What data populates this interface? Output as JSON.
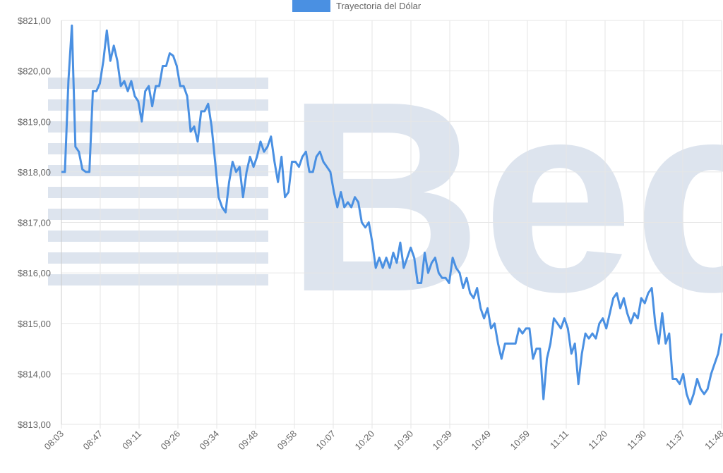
{
  "chart_data": {
    "type": "line",
    "legend_label": "Trayectoria del Dólar",
    "legend_position": "top-center",
    "grid": true,
    "colors": {
      "series": "#4A90E2",
      "grid": "#e6e6e6",
      "axis_text": "#666666",
      "watermark": "#dde4ee"
    },
    "watermark_text": "Bec",
    "y_ticks": [
      "$813,00",
      "$814,00",
      "$815,00",
      "$816,00",
      "$817,00",
      "$818,00",
      "$819,00",
      "$820,00",
      "$821,00"
    ],
    "ylim": [
      813,
      821
    ],
    "x_ticks": [
      "08:03",
      "08:47",
      "09:11",
      "09:26",
      "09:34",
      "09:48",
      "09:58",
      "10:07",
      "10:20",
      "10:30",
      "10:39",
      "10:49",
      "10:59",
      "11:11",
      "11:20",
      "11:30",
      "11:37",
      "11:48"
    ],
    "series": [
      {
        "name": "Trayectoria del Dólar",
        "values": [
          818.0,
          818.0,
          819.8,
          820.9,
          818.5,
          818.4,
          818.05,
          818.0,
          818.0,
          819.6,
          819.6,
          819.75,
          820.2,
          820.8,
          820.2,
          820.5,
          820.2,
          819.7,
          819.8,
          819.6,
          819.8,
          819.5,
          819.4,
          819.0,
          819.6,
          819.7,
          819.3,
          819.7,
          819.7,
          820.1,
          820.1,
          820.35,
          820.3,
          820.1,
          819.7,
          819.7,
          819.5,
          818.8,
          818.9,
          818.6,
          819.2,
          819.2,
          819.35,
          818.9,
          818.2,
          817.5,
          817.3,
          817.2,
          817.8,
          818.2,
          818.0,
          818.1,
          817.5,
          818.0,
          818.3,
          818.1,
          818.3,
          818.6,
          818.4,
          818.5,
          818.7,
          818.2,
          817.8,
          818.3,
          817.5,
          817.6,
          818.2,
          818.2,
          818.1,
          818.3,
          818.4,
          818.0,
          818.0,
          818.3,
          818.4,
          818.2,
          818.1,
          818.0,
          817.6,
          817.3,
          817.6,
          817.3,
          817.4,
          817.3,
          817.5,
          817.4,
          817.0,
          816.9,
          817.0,
          816.6,
          816.1,
          816.3,
          816.1,
          816.3,
          816.1,
          816.4,
          816.2,
          816.6,
          816.1,
          816.3,
          816.5,
          816.3,
          815.8,
          815.8,
          816.4,
          816.0,
          816.2,
          816.3,
          816.0,
          815.9,
          815.9,
          815.8,
          816.3,
          816.1,
          816.0,
          815.7,
          815.9,
          815.6,
          815.5,
          815.7,
          815.3,
          815.1,
          815.3,
          814.9,
          815.0,
          814.6,
          814.3,
          814.6,
          814.6,
          814.6,
          814.6,
          814.9,
          814.8,
          814.9,
          814.9,
          814.3,
          814.5,
          814.5,
          813.5,
          814.3,
          814.6,
          815.1,
          815.0,
          814.9,
          815.1,
          814.9,
          814.4,
          814.6,
          813.8,
          814.4,
          814.8,
          814.7,
          814.8,
          814.7,
          815.0,
          815.1,
          814.9,
          815.2,
          815.5,
          815.6,
          815.3,
          815.5,
          815.2,
          815.0,
          815.2,
          815.1,
          815.5,
          815.4,
          815.6,
          815.7,
          815.0,
          814.6,
          815.2,
          814.6,
          814.8,
          813.9,
          813.9,
          813.8,
          814.0,
          813.6,
          813.4,
          813.6,
          813.9,
          813.7,
          813.6,
          813.7,
          814.0,
          814.2,
          814.4,
          814.8
        ]
      }
    ]
  }
}
